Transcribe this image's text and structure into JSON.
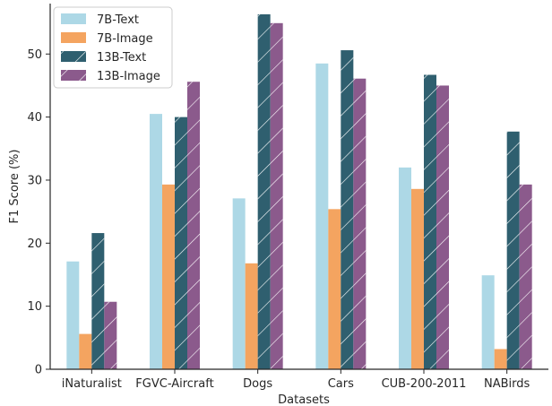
{
  "chart_data": {
    "type": "bar",
    "title": "",
    "xlabel": "Datasets",
    "ylabel": "F1 Score (%)",
    "ylim": [
      0,
      58
    ],
    "yticks": [
      0,
      10,
      20,
      30,
      40,
      50
    ],
    "grid": false,
    "legend_position": "top-left",
    "categories": [
      "iNaturalist",
      "FGVC-Aircraft",
      "Dogs",
      "Cars",
      "CUB-200-2011",
      "NABirds"
    ],
    "series": [
      {
        "name": "7B-Text",
        "color": "#add8e6",
        "hatch": false,
        "values": [
          17.1,
          40.5,
          27.1,
          48.5,
          32.0,
          14.9
        ]
      },
      {
        "name": "7B-Image",
        "color": "#f4a460",
        "hatch": false,
        "values": [
          5.6,
          29.3,
          16.8,
          25.4,
          28.6,
          3.2
        ]
      },
      {
        "name": "13B-Text",
        "color": "#2f5f6f",
        "hatch": true,
        "values": [
          21.6,
          40.0,
          56.3,
          50.6,
          46.7,
          37.7
        ]
      },
      {
        "name": "13B-Image",
        "color": "#8b5a8c",
        "hatch": true,
        "values": [
          10.7,
          45.6,
          54.9,
          46.1,
          45.0,
          29.3
        ]
      }
    ]
  }
}
